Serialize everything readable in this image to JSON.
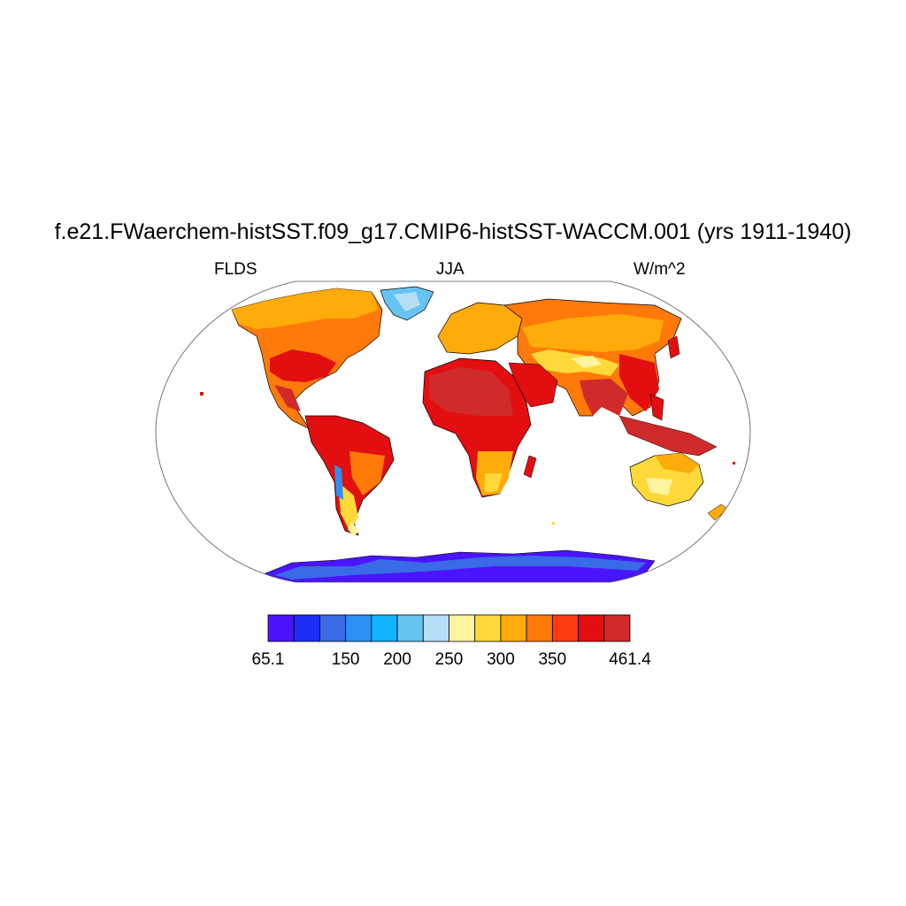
{
  "title": "f.e21.FWaerchem-histSST.f09_g17.CMIP6-histSST-WACCM.001 (yrs 1911-1940)",
  "left_string": "FLDS",
  "center_string": "JJA",
  "right_string": "W/m^2",
  "map": {
    "projection": "Robinson",
    "field": "FLDS",
    "season": "JJA",
    "ocean_masked": true
  },
  "colorbar": {
    "colors": [
      "#4a14ff",
      "#1e2ef5",
      "#3a6ae6",
      "#2b90f5",
      "#12b4ff",
      "#66c4f2",
      "#b5def7",
      "#fff5a0",
      "#ffd93a",
      "#ffab0a",
      "#ff7a08",
      "#ff3b12",
      "#e20e10",
      "#d12a2a"
    ],
    "labels": [
      {
        "text": "65.1",
        "boundary": 0
      },
      {
        "text": "150",
        "boundary": 3
      },
      {
        "text": "200",
        "boundary": 5
      },
      {
        "text": "250",
        "boundary": 7
      },
      {
        "text": "300",
        "boundary": 9
      },
      {
        "text": "350",
        "boundary": 11
      },
      {
        "text": "461.4",
        "boundary": 14
      }
    ]
  }
}
